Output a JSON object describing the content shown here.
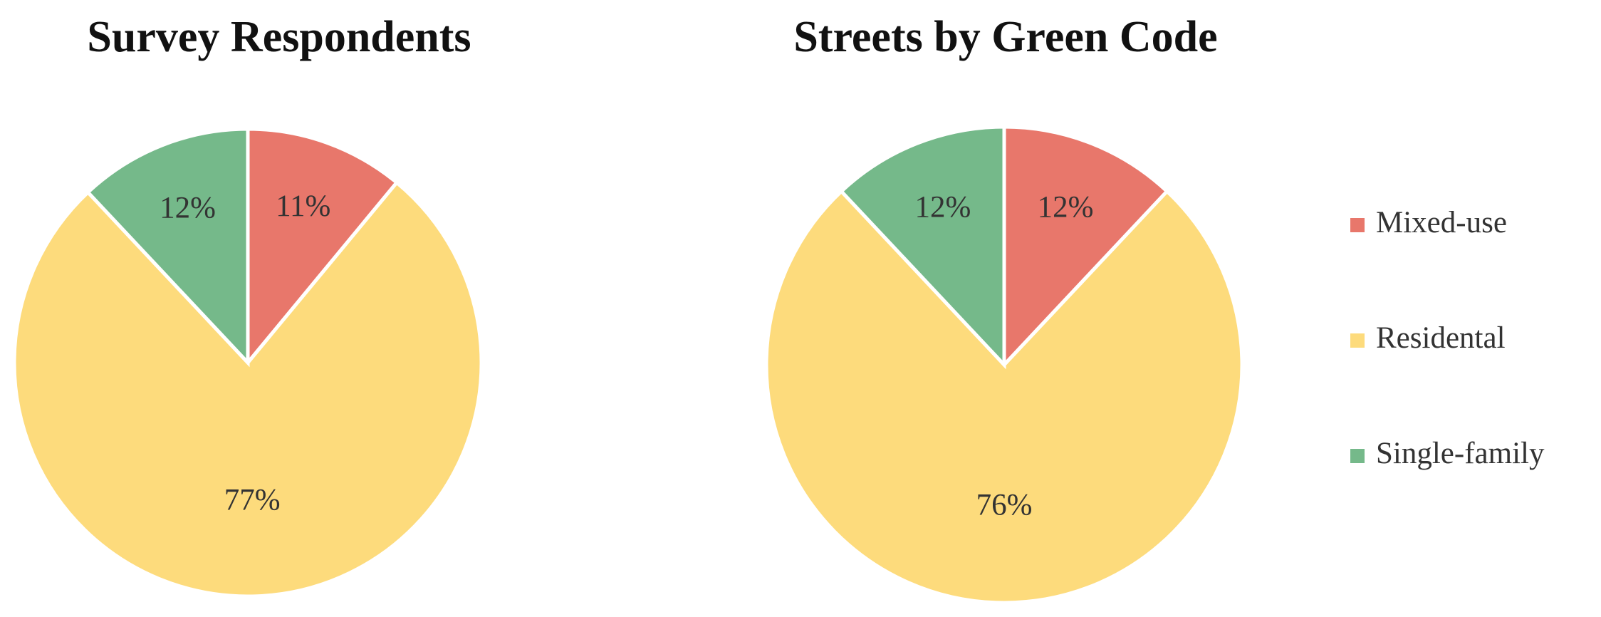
{
  "chart_data": [
    {
      "type": "pie",
      "title": "Survey Respondents",
      "values": [
        11,
        77,
        12
      ],
      "value_labels": [
        "11%",
        "77%",
        "12%"
      ]
    },
    {
      "type": "pie",
      "title": "Streets by Green Code",
      "values": [
        12,
        76,
        12
      ],
      "value_labels": [
        "12%",
        "76%",
        "12%"
      ]
    }
  ],
  "legend": {
    "categories": [
      "Mixed-use",
      "Residental",
      "Single-family"
    ],
    "colors": [
      "#e8776b",
      "#fddb7c",
      "#75b98a"
    ]
  }
}
